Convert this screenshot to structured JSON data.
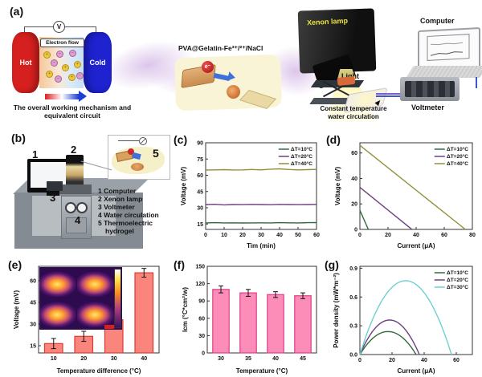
{
  "figure": {
    "panel_labels": {
      "a": "(a)",
      "b": "(b)",
      "c": "(c)",
      "d": "(d)",
      "e": "(e)",
      "f": "(f)",
      "g": "(g)"
    }
  },
  "panel_a": {
    "voltmeter_symbol": "V",
    "electron_flow": "Electron flow",
    "hot": "Hot",
    "cold": "Cold",
    "caption_line1": "The overall working mechanism and",
    "caption_line2": "equivalent circuit",
    "material": "PVA@Gelatin-Fe³⁺/²⁺/NaCl",
    "electron": "e⁻",
    "xenon_lamp": "Xenon lamp",
    "light": "Light",
    "computer": "Computer",
    "voltmeter": "Voltmeter",
    "water_line1": "Constant temperature",
    "water_line2": "water circulation"
  },
  "panel_b": {
    "num1": "1",
    "num2": "2",
    "num3": "3",
    "num4": "4",
    "num5": "5",
    "legend": [
      "1 Computer",
      "2 Xenon lamp",
      "3 Voltmeter",
      "4 Water circulation",
      "5 Thermoelectric",
      "hydrogel"
    ]
  },
  "chart_data": [
    {
      "id": "c",
      "type": "line",
      "title": "",
      "xlabel": "Tim (min)",
      "ylabel": "Voltage (mV)",
      "xlim": [
        0,
        60
      ],
      "ylim": [
        10,
        90
      ],
      "xticks": [
        0,
        10,
        20,
        30,
        40,
        50,
        60
      ],
      "yticks": [
        15,
        30,
        45,
        60,
        75,
        90
      ],
      "grid": false,
      "legend": true,
      "legend_position": "top-right",
      "series": [
        {
          "name": "ΔT=10°C",
          "color": "#2f6b3c",
          "x": [
            0,
            5,
            10,
            15,
            20,
            25,
            30,
            35,
            40,
            45,
            50,
            55,
            60
          ],
          "y": [
            16,
            16.2,
            16,
            16.1,
            15.9,
            16,
            16.1,
            16,
            16.2,
            16.1,
            16,
            16.2,
            16.3
          ]
        },
        {
          "name": "ΔT=20°C",
          "color": "#6e4080",
          "x": [
            0,
            5,
            10,
            15,
            20,
            25,
            30,
            35,
            40,
            45,
            50,
            55,
            60
          ],
          "y": [
            33,
            33.2,
            32.7,
            33,
            32.9,
            33.1,
            33,
            32.8,
            33.1,
            33,
            32.9,
            33,
            33.1
          ]
        },
        {
          "name": "ΔT=40°C",
          "color": "#91913c",
          "x": [
            0,
            5,
            10,
            15,
            20,
            25,
            30,
            35,
            40,
            45,
            50,
            55,
            60
          ],
          "y": [
            64.8,
            65,
            65.2,
            64.9,
            65,
            65.3,
            65,
            65.6,
            65.9,
            65.3,
            65,
            65.2,
            65.4
          ]
        }
      ]
    },
    {
      "id": "d",
      "type": "line",
      "title": "",
      "xlabel": "Current (μA)",
      "ylabel": "Voltage (mV)",
      "xlim": [
        0,
        80
      ],
      "ylim": [
        0,
        68
      ],
      "xticks": [
        0,
        20,
        40,
        60,
        80
      ],
      "yticks": [
        0,
        20,
        40,
        60
      ],
      "grid": false,
      "legend": true,
      "legend_position": "top-right",
      "series": [
        {
          "name": "ΔT=10°C",
          "color": "#2f6b3c",
          "x": [
            0,
            6
          ],
          "y": [
            15,
            0
          ]
        },
        {
          "name": "ΔT=20°C",
          "color": "#6e4080",
          "x": [
            0,
            37
          ],
          "y": [
            33,
            0
          ]
        },
        {
          "name": "ΔT=40°C",
          "color": "#91913c",
          "x": [
            0,
            75
          ],
          "y": [
            66,
            0
          ]
        }
      ]
    },
    {
      "id": "e",
      "type": "bar",
      "title": "",
      "xlabel": "Temperature difference (°C)",
      "ylabel": "Voltage (mV)",
      "ylim": [
        10,
        70
      ],
      "yticks": [
        15,
        30,
        45,
        60
      ],
      "grid": false,
      "categories": [
        "10",
        "20",
        "30",
        "40"
      ],
      "values": [
        16.5,
        21.5,
        33,
        65.5
      ],
      "errors": [
        3.5,
        3.5,
        3.5,
        3
      ],
      "bar_fill": "#f9857c",
      "bar_stroke": "#dd3a31"
    },
    {
      "id": "f",
      "type": "bar",
      "title": "",
      "xlabel": "Temperature (°C)",
      "ylabel": "Icm (°C*cm²/w)",
      "ylim": [
        0,
        150
      ],
      "yticks": [
        0,
        30,
        60,
        90,
        120,
        150
      ],
      "grid": false,
      "categories": [
        "30",
        "35",
        "40",
        "45"
      ],
      "values": [
        110,
        104,
        101,
        99
      ],
      "errors": [
        6,
        6,
        5,
        5
      ],
      "bar_fill": "#fb8db8",
      "bar_stroke": "#e03c88"
    },
    {
      "id": "g",
      "type": "parabola",
      "title": "",
      "xlabel": "Current (μA)",
      "ylabel": "Power density (mW*m⁻²)",
      "xlim": [
        0,
        70
      ],
      "ylim": [
        0,
        0.92
      ],
      "xticks": [
        0,
        20,
        40,
        60
      ],
      "yticks": [
        0,
        0.3,
        0.6,
        0.9
      ],
      "ytick_labels": [
        "0.0",
        "0.3",
        "0.6",
        "0.9"
      ],
      "grid": false,
      "legend": true,
      "legend_position": "top-right",
      "series": [
        {
          "name": "ΔT=10°C",
          "color": "#2f6b3c",
          "peak": 0.24,
          "end": 35
        },
        {
          "name": "ΔT=20°C",
          "color": "#6e4080",
          "peak": 0.36,
          "end": 37
        },
        {
          "name": "ΔT=30°C",
          "color": "#6fd1cf",
          "peak": 0.77,
          "end": 57
        }
      ]
    }
  ]
}
